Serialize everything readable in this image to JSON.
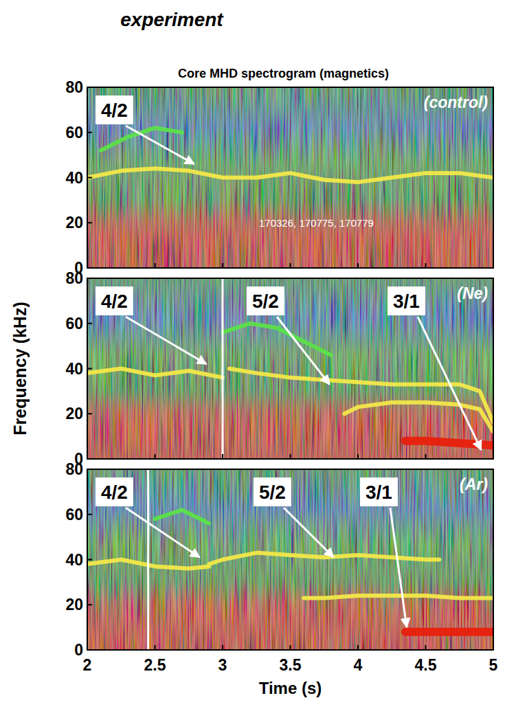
{
  "heading": "experiment",
  "chart_data": [
    {
      "type": "line",
      "title": "Core MHD spectrogram (magnetics)",
      "subtitle": "(control)",
      "caption": "170326, 170775, 170779",
      "xlim": [
        2,
        5
      ],
      "xticks": [
        2,
        2.5,
        3,
        3.5,
        4,
        4.5,
        5
      ],
      "ylim": [
        0,
        80
      ],
      "yticks": [
        0,
        20,
        40,
        60,
        80
      ],
      "tick_labels": "y",
      "series": [
        {
          "color": "#f2e84a",
          "x": [
            2.0,
            2.25,
            2.5,
            2.75,
            3.0,
            3.25,
            3.5,
            3.75,
            4.0,
            4.25,
            4.5,
            4.75,
            5.0
          ],
          "values": [
            40,
            43,
            44,
            43,
            40,
            40,
            42,
            39,
            38,
            40,
            42,
            42,
            40
          ]
        },
        {
          "color": "#5ce04a",
          "x": [
            2.1,
            2.3,
            2.5,
            2.7
          ],
          "values": [
            52,
            58,
            62,
            60
          ]
        }
      ],
      "annotations": [
        {
          "text": "4/2",
          "x": 2.79,
          "y": 46
        }
      ]
    },
    {
      "type": "line",
      "subtitle": "(Ne)",
      "ylabel": "Frequency (kHz)",
      "xlim": [
        2,
        5
      ],
      "xticks": [
        2,
        2.5,
        3,
        3.5,
        4,
        4.5,
        5
      ],
      "ylim": [
        0,
        80
      ],
      "yticks": [
        0,
        20,
        40,
        60,
        80
      ],
      "tick_labels": "y",
      "vlines": [
        3
      ],
      "series": [
        {
          "color": "#f2e84a",
          "x": [
            2.0,
            2.25,
            2.5,
            2.75,
            3.0
          ],
          "values": [
            38,
            40,
            37,
            39,
            36
          ]
        },
        {
          "color": "#f2e84a",
          "x": [
            3.05,
            3.25,
            3.5,
            3.75,
            4.0,
            4.25,
            4.5,
            4.75,
            4.9,
            5.0
          ],
          "values": [
            40,
            38,
            36,
            35,
            34,
            33,
            33,
            33,
            30,
            16
          ]
        },
        {
          "color": "#f2e84a",
          "x": [
            3.9,
            4.0,
            4.25,
            4.5,
            4.75,
            4.9,
            5.0
          ],
          "values": [
            20,
            23,
            25,
            25,
            24,
            22,
            12
          ]
        },
        {
          "color": "#e8200c",
          "x": [
            4.35,
            4.5,
            4.75,
            5.0
          ],
          "values": [
            8,
            8,
            7,
            6
          ]
        },
        {
          "color": "#5ce04a",
          "x": [
            3.0,
            3.2,
            3.4,
            3.6,
            3.8
          ],
          "values": [
            56,
            60,
            58,
            52,
            46
          ]
        }
      ],
      "annotations": [
        {
          "text": "4/2",
          "x": 2.88,
          "y": 42
        },
        {
          "text": "5/2",
          "x": 3.79,
          "y": 33
        },
        {
          "text": "3/1",
          "x": 4.91,
          "y": 4
        }
      ]
    },
    {
      "type": "line",
      "subtitle": "(Ar)",
      "xlabel": "Time (s)",
      "xlim": [
        2,
        5
      ],
      "xticks": [
        2,
        2.5,
        3,
        3.5,
        4,
        4.5,
        5
      ],
      "ylim": [
        0,
        80
      ],
      "yticks": [
        0,
        20,
        40,
        60,
        80
      ],
      "vlines": [
        2.45
      ],
      "series": [
        {
          "color": "#f2e84a",
          "x": [
            2.0,
            2.25,
            2.5,
            2.75,
            2.9
          ],
          "values": [
            38,
            40,
            37,
            36,
            37
          ]
        },
        {
          "color": "#f2e84a",
          "x": [
            2.9,
            3.0,
            3.25,
            3.5,
            3.75,
            4.0,
            4.25,
            4.5,
            4.6
          ],
          "values": [
            38,
            40,
            43,
            42,
            41,
            42,
            41,
            40,
            40
          ]
        },
        {
          "color": "#f2e84a",
          "x": [
            3.6,
            3.75,
            4.0,
            4.25,
            4.5,
            4.75,
            5.0
          ],
          "values": [
            23,
            23,
            24,
            24,
            24,
            23,
            23
          ]
        },
        {
          "color": "#e8200c",
          "x": [
            4.35,
            4.5,
            4.75,
            5.0
          ],
          "values": [
            8,
            8,
            8,
            8
          ]
        },
        {
          "color": "#5ce04a",
          "x": [
            2.5,
            2.7,
            2.9
          ],
          "values": [
            58,
            62,
            56
          ]
        }
      ],
      "annotations": [
        {
          "text": "4/2",
          "x": 2.83,
          "y": 41
        },
        {
          "text": "5/2",
          "x": 3.82,
          "y": 41
        },
        {
          "text": "3/1",
          "x": 4.36,
          "y": 10
        }
      ]
    }
  ]
}
